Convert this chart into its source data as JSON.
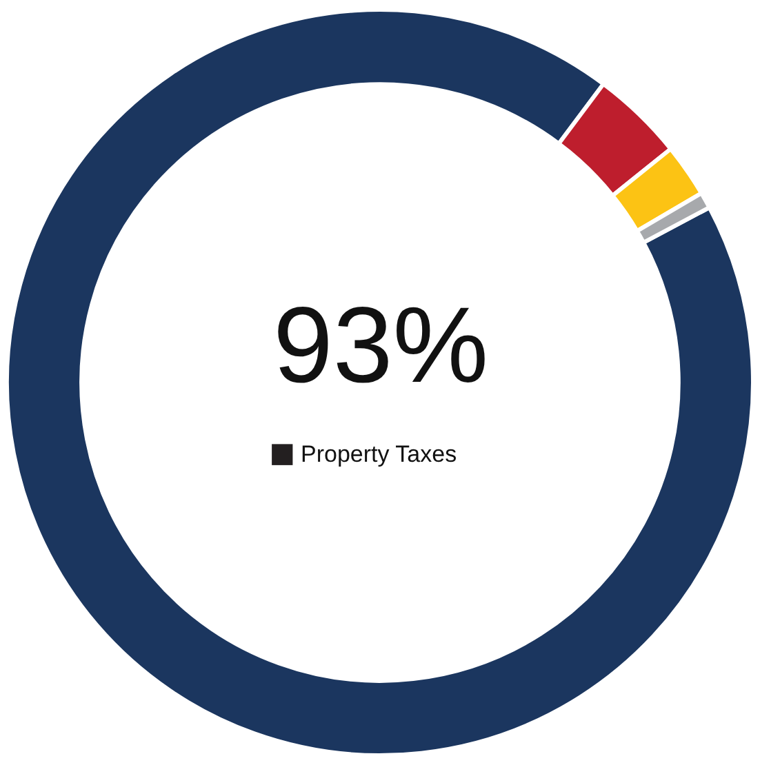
{
  "chart_data": {
    "type": "donut",
    "categories": [
      "Property Taxes",
      null,
      null,
      null
    ],
    "values": [
      93,
      4,
      2.3,
      0.7
    ],
    "colors": [
      "#1b365f",
      "#be1e2d",
      "#fcc314",
      "#a7a9ac"
    ],
    "annotations": [
      "93%"
    ]
  }
}
